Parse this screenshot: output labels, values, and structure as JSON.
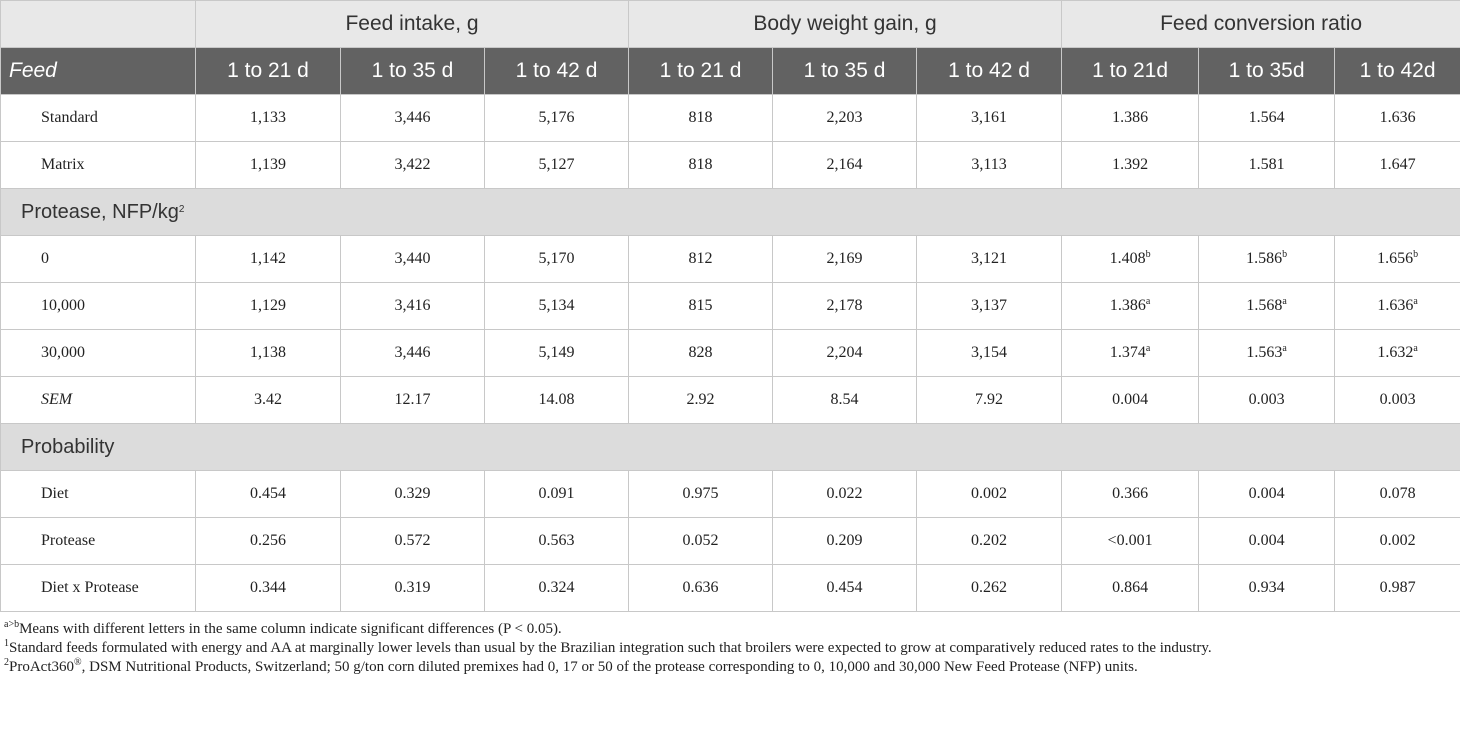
{
  "table": {
    "groups": [
      "Feed intake, g",
      "Body weight gain, g",
      "Feed conversion ratio"
    ],
    "columns": [
      "Feed",
      "1 to 21 d",
      "1 to 35 d",
      "1 to 42 d",
      "1 to 21 d",
      "1 to 35 d",
      "1 to 42 d",
      "1 to 21d",
      "1 to 35d",
      "1 to 42d"
    ],
    "rows": [
      {
        "label": "Standard",
        "cells": [
          "1,133",
          "3,446",
          "5,176",
          "818",
          "2,203",
          "3,161",
          "1.386",
          "1.564",
          "1.636"
        ]
      },
      {
        "label": "Matrix",
        "cells": [
          "1,139",
          "3,422",
          "5,127",
          "818",
          "2,164",
          "3,113",
          "1.392",
          "1.581",
          "1.647"
        ]
      },
      {
        "section": "Protease, NFP/kg",
        "sup": "2"
      },
      {
        "label": "0",
        "cells": [
          "1,142",
          "3,440",
          "5,170",
          "812",
          "2,169",
          "3,121",
          {
            "text": "1.408",
            "sup": "b"
          },
          {
            "text": "1.586",
            "sup": "b"
          },
          {
            "text": "1.656",
            "sup": "b"
          }
        ]
      },
      {
        "label": "10,000",
        "cells": [
          "1,129",
          "3,416",
          "5,134",
          "815",
          "2,178",
          "3,137",
          {
            "text": "1.386",
            "sup": "a"
          },
          {
            "text": "1.568",
            "sup": "a"
          },
          {
            "text": "1.636",
            "sup": "a"
          }
        ]
      },
      {
        "label": "30,000",
        "cells": [
          "1,138",
          "3,446",
          "5,149",
          "828",
          "2,204",
          "3,154",
          {
            "text": "1.374",
            "sup": "a"
          },
          {
            "text": "1.563",
            "sup": "a"
          },
          {
            "text": "1.632",
            "sup": "a"
          }
        ]
      },
      {
        "label": "SEM",
        "style": "italic",
        "cells": [
          "3.42",
          "12.17",
          "14.08",
          "2.92",
          "8.54",
          "7.92",
          "0.004",
          "0.003",
          "0.003"
        ]
      },
      {
        "section": "Probability"
      },
      {
        "label": "Diet",
        "cells": [
          "0.454",
          "0.329",
          "0.091",
          "0.975",
          "0.022",
          "0.002",
          "0.366",
          "0.004",
          "0.078"
        ]
      },
      {
        "label": "Protease",
        "cells": [
          "0.256",
          "0.572",
          "0.563",
          "0.052",
          "0.209",
          "0.202",
          "<0.001",
          "0.004",
          "0.002"
        ]
      },
      {
        "label": "Diet x Protease",
        "cells": [
          "0.344",
          "0.319",
          "0.324",
          "0.636",
          "0.454",
          "0.262",
          "0.864",
          "0.934",
          "0.987"
        ]
      }
    ]
  },
  "footnotes": [
    [
      {
        "sup": "a>b"
      },
      {
        "text": "Means with different letters in the same column indicate significant differences (P < 0.05)."
      }
    ],
    [
      {
        "sup": "1"
      },
      {
        "text": "Standard feeds formulated with energy and AA at marginally lower levels than usual by the Brazilian integration such that broilers were expected to grow at comparatively reduced rates to the industry."
      }
    ],
    [
      {
        "sup": "2"
      },
      {
        "text": "ProAct360"
      },
      {
        "sup": "®"
      },
      {
        "text": ", DSM Nutritional Products, Switzerland; 50 g/ton corn diluted premixes had 0, 17 or 50 of the protease corresponding to 0, 10,000 and 30,000 New Feed Protease (NFP) units."
      }
    ]
  ]
}
